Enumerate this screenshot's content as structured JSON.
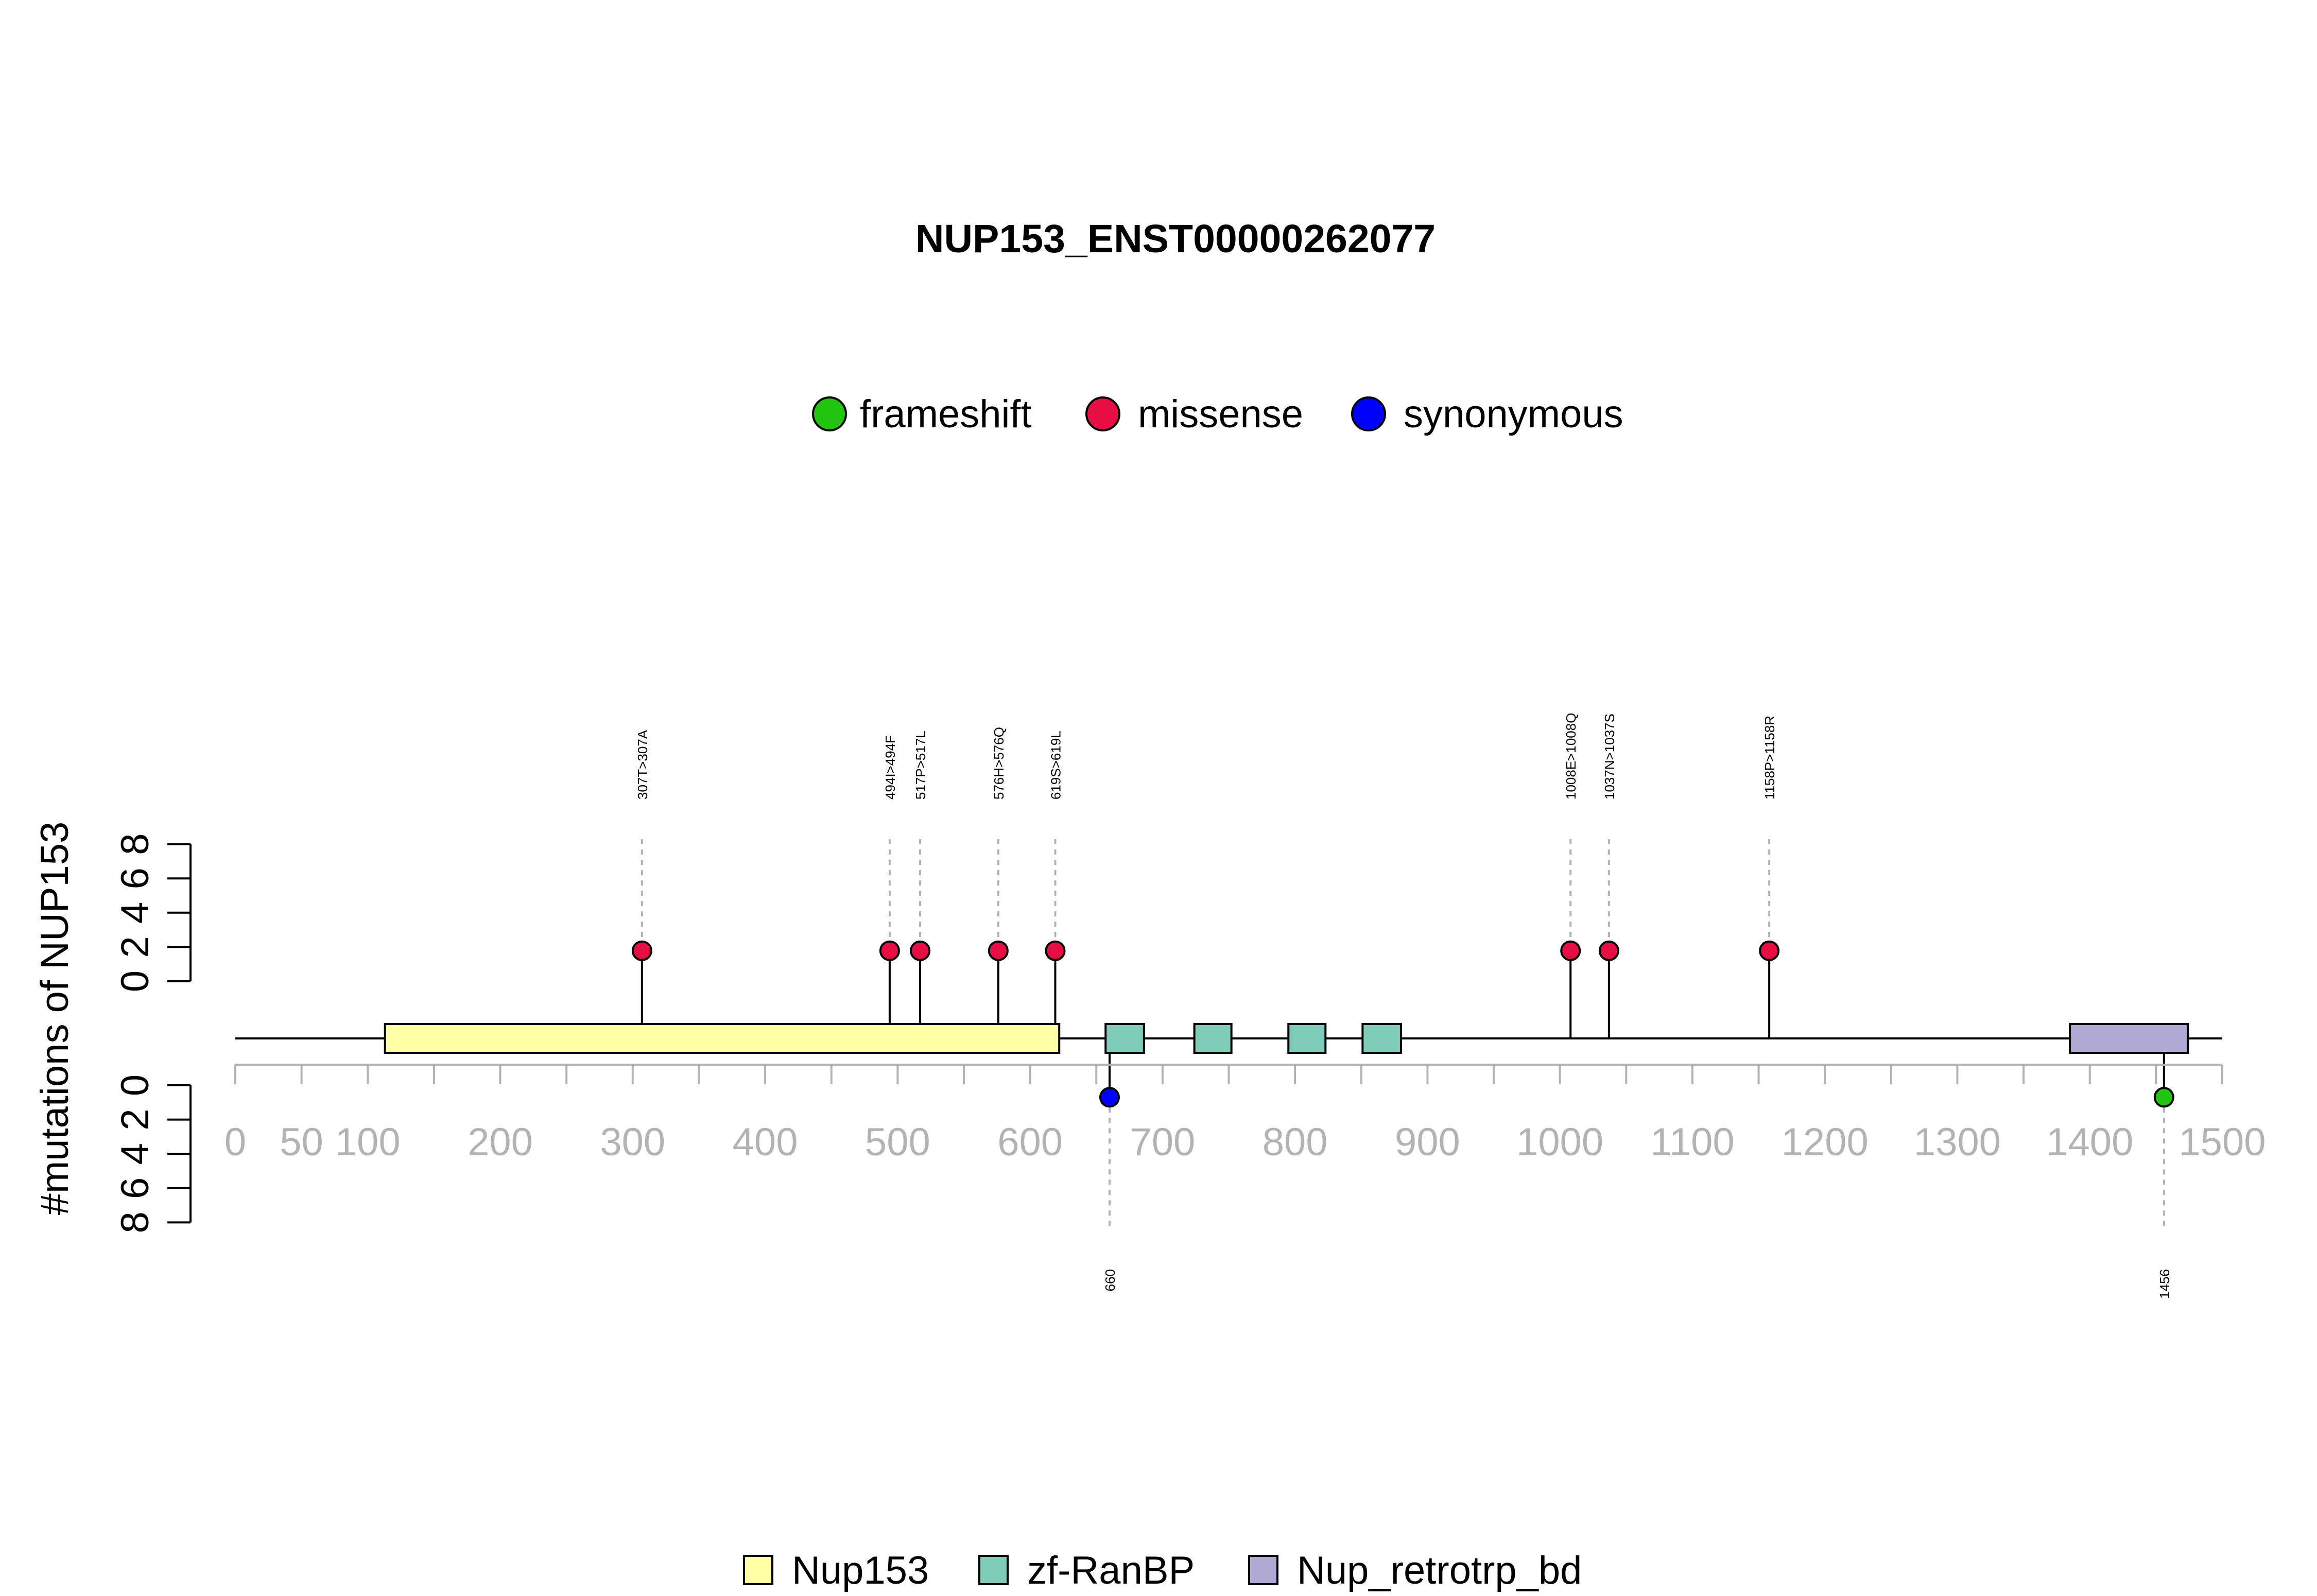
{
  "chart_data": {
    "type": "lollipop",
    "title": "NUP153_ENST00000262077",
    "ylabel": "#mutations of NUP153",
    "xlim": [
      0,
      1500
    ],
    "x_ticks": [
      0,
      50,
      100,
      200,
      300,
      400,
      500,
      600,
      700,
      800,
      900,
      1000,
      1100,
      1200,
      1300,
      1400,
      1500
    ],
    "y_ticks": [
      0,
      2,
      4,
      6,
      8
    ],
    "mutation_legend": [
      {
        "name": "frameshift",
        "color": "#22c40f"
      },
      {
        "name": "missense",
        "color": "#e60e43"
      },
      {
        "name": "synonymous",
        "color": "#0000ff"
      }
    ],
    "domain_legend": [
      {
        "name": "Nup153",
        "color": "#ffffa6"
      },
      {
        "name": "zf-RanBP",
        "color": "#7fccbb"
      },
      {
        "name": "Nup_retrotrp_bd",
        "color": "#b0a9d4"
      }
    ],
    "domains": [
      {
        "name": "Nup153",
        "start": 113,
        "end": 622,
        "color": "#ffffa6"
      },
      {
        "name": "zf-RanBP",
        "start": 657,
        "end": 686,
        "color": "#7fccbb"
      },
      {
        "name": "zf-RanBP",
        "start": 724,
        "end": 752,
        "color": "#7fccbb"
      },
      {
        "name": "zf-RanBP",
        "start": 795,
        "end": 823,
        "color": "#7fccbb"
      },
      {
        "name": "zf-RanBP",
        "start": 851,
        "end": 880,
        "color": "#7fccbb"
      },
      {
        "name": "Nup_retrotrp_bd",
        "start": 1385,
        "end": 1474,
        "color": "#b0a9d4"
      }
    ],
    "mutations_above": [
      {
        "pos": 307,
        "count": 1,
        "type": "missense",
        "label": "307T>307A"
      },
      {
        "pos": 494,
        "count": 1,
        "type": "missense",
        "label": "494I>494F"
      },
      {
        "pos": 517,
        "count": 1,
        "type": "missense",
        "label": "517P>517L"
      },
      {
        "pos": 576,
        "count": 1,
        "type": "missense",
        "label": "576H>576Q"
      },
      {
        "pos": 619,
        "count": 1,
        "type": "missense",
        "label": "619S>619L"
      },
      {
        "pos": 1008,
        "count": 1,
        "type": "missense",
        "label": "1008E>1008Q"
      },
      {
        "pos": 1037,
        "count": 1,
        "type": "missense",
        "label": "1037N>1037S"
      },
      {
        "pos": 1158,
        "count": 1,
        "type": "missense",
        "label": "1158P>1158R"
      }
    ],
    "mutations_below": [
      {
        "pos": 660,
        "count": 1,
        "type": "synonymous",
        "label": "660"
      },
      {
        "pos": 1456,
        "count": 1,
        "type": "frameshift",
        "label": "1456"
      }
    ]
  }
}
